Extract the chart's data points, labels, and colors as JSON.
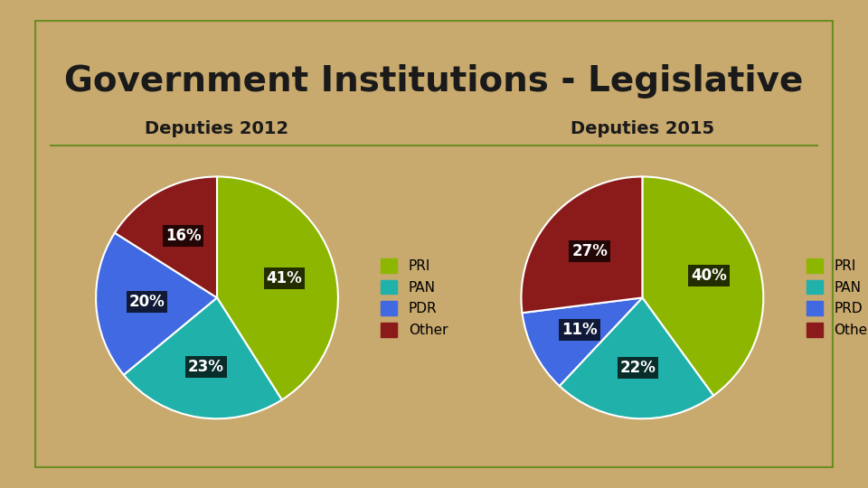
{
  "title": "Government Institutions - Legislative",
  "title_fontsize": 28,
  "title_color": "#1a1a1a",
  "background_outer": "#c8a96e",
  "background_inner": "#f5f5f5",
  "border_color_outer": "#6b8e23",
  "chart1_title": "Deputies 2012",
  "chart1_values": [
    41,
    23,
    20,
    16
  ],
  "chart1_labels": [
    "PRI",
    "PAN",
    "PDR",
    "Other"
  ],
  "chart1_colors": [
    "#8db600",
    "#20b2aa",
    "#4169e1",
    "#8b1a1a"
  ],
  "chart2_title": "Deputies 2015",
  "chart2_values": [
    40,
    22,
    11,
    27
  ],
  "chart2_labels": [
    "PRI",
    "PAN",
    "PRD",
    "Others"
  ],
  "chart2_colors": [
    "#8db600",
    "#20b2aa",
    "#4169e1",
    "#8b1a1a"
  ],
  "pct_label_fontsize": 12,
  "legend_fontsize": 11,
  "chart_title_fontsize": 14,
  "chart_bg": "#e8e8e8"
}
